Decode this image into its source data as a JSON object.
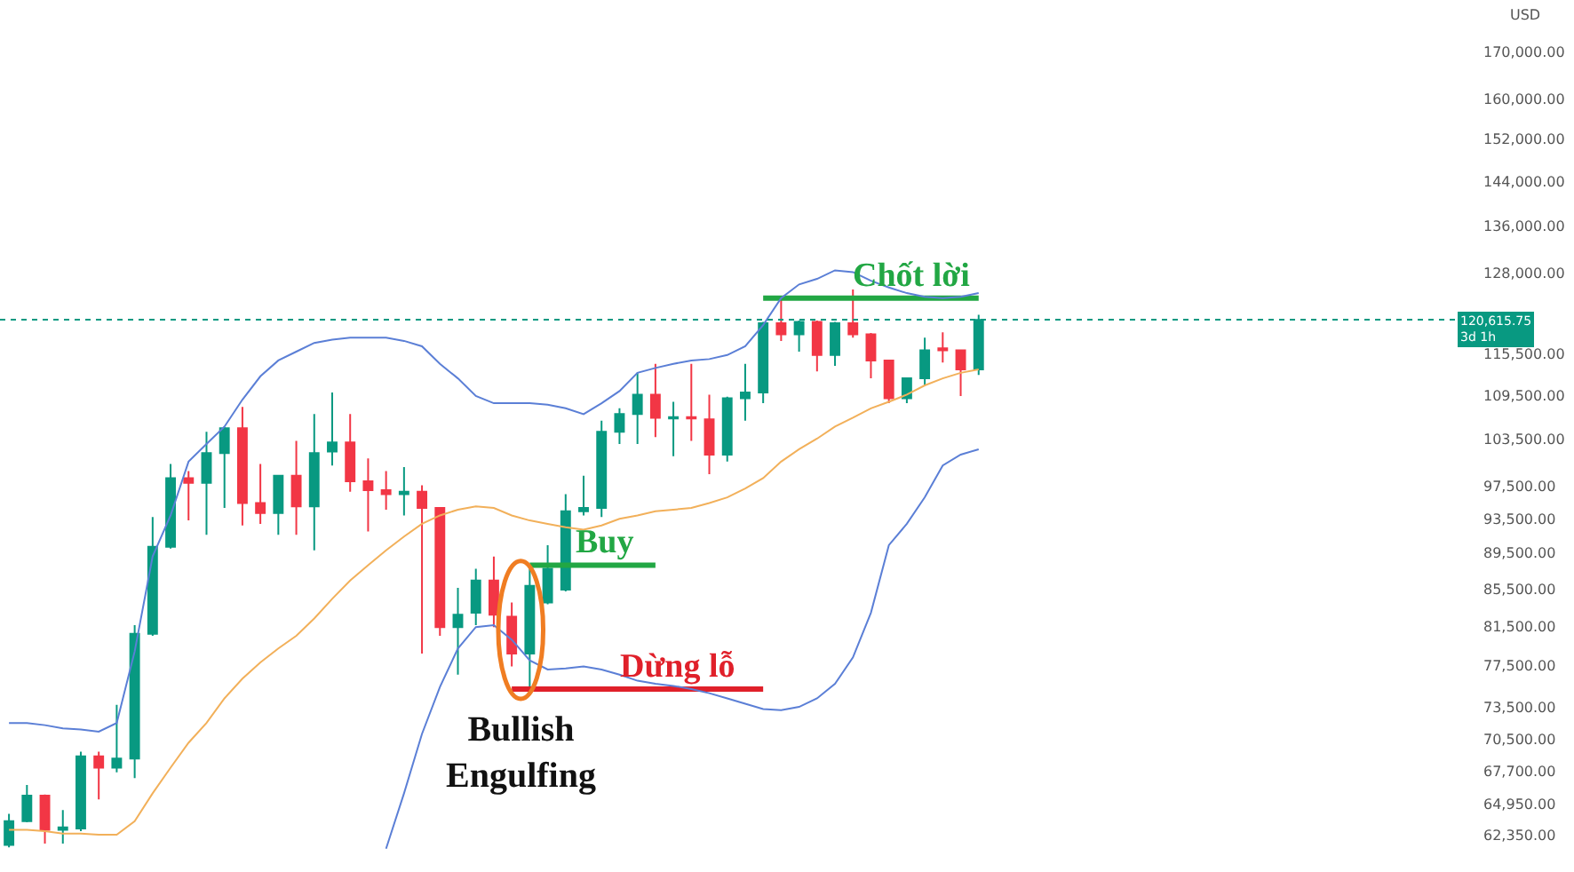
{
  "chart_data": {
    "type": "candlestick",
    "ylabel": "USD",
    "categories": [
      null,
      null,
      null,
      null,
      null,
      null,
      null,
      null,
      null,
      null,
      null,
      null,
      null,
      null,
      null,
      null,
      null,
      null,
      null,
      null,
      null,
      null,
      null,
      null,
      null,
      null,
      null,
      null,
      null,
      null,
      null,
      null,
      null,
      null,
      null,
      null,
      null,
      null,
      null,
      null,
      null,
      null,
      null,
      null,
      null,
      null,
      null,
      null,
      null,
      null,
      null,
      null,
      null,
      null,
      null
    ],
    "ohlc": [
      [
        61600,
        64100,
        61400,
        63500
      ],
      [
        63500,
        66500,
        63400,
        65600
      ],
      [
        65600,
        65700,
        61700,
        62800
      ],
      [
        62800,
        64400,
        61700,
        63000
      ],
      [
        62900,
        69400,
        62700,
        69000
      ],
      [
        69000,
        69400,
        65300,
        68000
      ],
      [
        68000,
        73700,
        67600,
        68800
      ],
      [
        68800,
        81600,
        67100,
        80700
      ],
      [
        80700,
        93700,
        80500,
        90200
      ],
      [
        90200,
        100300,
        90000,
        98500
      ],
      [
        98500,
        99400,
        93300,
        97900
      ],
      [
        97900,
        104500,
        91600,
        101700
      ],
      [
        101700,
        105200,
        94800,
        105000
      ],
      [
        105000,
        107900,
        92700,
        95400
      ],
      [
        95400,
        100300,
        92900,
        94200
      ],
      [
        94200,
        98900,
        91600,
        98800
      ],
      [
        98800,
        103300,
        91600,
        95000
      ],
      [
        95000,
        106900,
        89800,
        101700
      ],
      [
        101900,
        109900,
        100100,
        103100
      ],
      [
        103100,
        106900,
        96800,
        98100
      ],
      [
        98100,
        101000,
        92000,
        97000
      ],
      [
        97000,
        99400,
        94600,
        96500
      ],
      [
        96500,
        99900,
        93900,
        96800
      ],
      [
        96800,
        97600,
        78700,
        94800
      ],
      [
        94800,
        94900,
        80500,
        81400
      ],
      [
        81400,
        85600,
        76600,
        82700
      ],
      [
        82900,
        87700,
        81600,
        86400
      ],
      [
        86400,
        89100,
        81400,
        82700
      ],
      [
        82500,
        84000,
        77400,
        78700
      ],
      [
        78700,
        87700,
        75400,
        85800
      ],
      [
        84000,
        90400,
        83800,
        87700
      ],
      [
        85400,
        96500,
        85200,
        94400
      ],
      [
        94400,
        98800,
        93900,
        94800
      ],
      [
        94800,
        106000,
        93700,
        104500
      ],
      [
        104500,
        107700,
        102900,
        106900
      ],
      [
        106900,
        112700,
        102900,
        109600
      ],
      [
        109600,
        114000,
        103800,
        106400
      ],
      [
        106300,
        108600,
        101300,
        106500
      ],
      [
        106500,
        114000,
        103300,
        106300
      ],
      [
        106200,
        109600,
        99000,
        101500
      ],
      [
        101500,
        109300,
        100600,
        109100
      ],
      [
        109100,
        114000,
        106000,
        109900
      ],
      [
        109900,
        120300,
        108400,
        120100
      ],
      [
        120100,
        124000,
        117400,
        118400
      ],
      [
        118400,
        120500,
        115800,
        120300
      ],
      [
        120300,
        120500,
        112900,
        115300
      ],
      [
        115300,
        120300,
        113700,
        120100
      ],
      [
        120100,
        125400,
        117900,
        118400
      ],
      [
        118400,
        118600,
        111900,
        114500
      ],
      [
        114500,
        114600,
        108400,
        109100
      ],
      [
        109100,
        112000,
        108400,
        111900
      ],
      [
        111900,
        117900,
        110900,
        116000
      ],
      [
        116300,
        118700,
        114200,
        116000
      ],
      [
        116000,
        116100,
        109400,
        113200
      ],
      [
        113200,
        121400,
        112400,
        120600
      ]
    ],
    "colors": [
      "#089981",
      "#089981",
      "#f23645",
      "#089981",
      "#089981",
      "#f23645",
      "#089981",
      "#089981",
      "#089981",
      "#089981",
      "#f23645",
      "#089981",
      "#089981",
      "#f23645",
      "#f23645",
      "#089981",
      "#f23645",
      "#089981",
      "#089981",
      "#f23645",
      "#f23645",
      "#f23645",
      "#089981",
      "#f23645",
      "#f23645",
      "#089981",
      "#089981",
      "#f23645",
      "#f23645",
      "#089981",
      "#089981",
      "#089981",
      "#089981",
      "#089981",
      "#089981",
      "#089981",
      "#f23645",
      "#089981",
      "#f23645",
      "#f23645",
      "#089981",
      "#089981",
      "#089981",
      "#f23645",
      "#089981",
      "#f23645",
      "#089981",
      "#f23645",
      "#f23645",
      "#f23645",
      "#089981",
      "#089981",
      "#f23645",
      "#f23645",
      "#089981"
    ],
    "series": [
      {
        "type": "line",
        "color": "#5b7fd6",
        "values": [
          72000,
          72000,
          71800,
          71500,
          71400,
          71200,
          72000,
          78900,
          89100,
          93900,
          100600,
          102900,
          105200,
          108900,
          112200,
          114500,
          115800,
          117100,
          117600,
          117900,
          117900,
          117900,
          117400,
          116600,
          114000,
          111900,
          109400,
          108400,
          108400,
          108400,
          108200,
          107700,
          106900,
          108400,
          110100,
          112700,
          113400,
          114000,
          114500,
          114700,
          115300,
          116600,
          119800,
          124000,
          126200,
          127100,
          128500,
          128200,
          126800,
          125700,
          124800,
          124200,
          124000,
          124200,
          124800
        ]
      },
      {
        "type": "line",
        "color": "#f2b05a",
        "values": [
          62800,
          62800,
          62700,
          62500,
          62500,
          62400,
          62400,
          63500,
          65800,
          68000,
          70200,
          72000,
          74300,
          76200,
          77800,
          79200,
          80500,
          82300,
          84400,
          86400,
          88100,
          89800,
          91400,
          92900,
          93900,
          94600,
          95000,
          94800,
          93900,
          93300,
          92900,
          92500,
          92200,
          92700,
          93500,
          93900,
          94400,
          94600,
          94800,
          95400,
          96100,
          97200,
          98500,
          100600,
          102200,
          103600,
          105200,
          106400,
          107700,
          108600,
          109600,
          110900,
          111900,
          112700,
          113200
        ]
      },
      {
        "type": "line",
        "color": "#5b7fd6",
        "values": [
          null,
          null,
          null,
          null,
          null,
          null,
          null,
          null,
          null,
          null,
          null,
          null,
          null,
          null,
          null,
          null,
          null,
          null,
          null,
          null,
          null,
          61300,
          65800,
          71000,
          75400,
          79200,
          81400,
          81600,
          80100,
          78000,
          77100,
          77200,
          77400,
          77100,
          76600,
          76000,
          75700,
          75500,
          75200,
          74800,
          74300,
          73800,
          73300,
          73200,
          73500,
          74300,
          75700,
          78300,
          82900,
          90400,
          92900,
          96100,
          100100,
          101500,
          102200
        ]
      },
      {
        "type": "line",
        "name": "Chốt lời",
        "color": "#22a744",
        "values": [
          null,
          null,
          null,
          null,
          null,
          null,
          null,
          null,
          null,
          null,
          null,
          null,
          null,
          null,
          null,
          null,
          null,
          null,
          null,
          null,
          null,
          null,
          null,
          null,
          null,
          null,
          null,
          null,
          null,
          null,
          null,
          null,
          null,
          null,
          null,
          null,
          null,
          null,
          null,
          null,
          null,
          null,
          124000,
          124000,
          124000,
          124000,
          124000,
          124000,
          124000,
          124000,
          124000,
          124000,
          124000,
          124000,
          124000
        ]
      },
      {
        "type": "line",
        "name": "Buy",
        "color": "#22a744",
        "values": [
          null,
          null,
          null,
          null,
          null,
          null,
          null,
          null,
          null,
          null,
          null,
          null,
          null,
          null,
          null,
          null,
          null,
          null,
          null,
          null,
          null,
          null,
          null,
          null,
          null,
          null,
          null,
          null,
          null,
          88100,
          88100,
          88100,
          88100,
          88100,
          88100,
          88100,
          88100,
          null,
          null,
          null,
          null,
          null,
          null,
          null,
          null,
          null,
          null,
          null,
          null,
          null,
          null,
          null,
          null,
          null,
          null
        ]
      },
      {
        "type": "line",
        "name": "Dừng lỗ",
        "color": "#e0202a",
        "values": [
          null,
          null,
          null,
          null,
          null,
          null,
          null,
          null,
          null,
          null,
          null,
          null,
          null,
          null,
          null,
          null,
          null,
          null,
          null,
          null,
          null,
          null,
          null,
          null,
          null,
          null,
          null,
          null,
          75200,
          75200,
          75200,
          75200,
          75200,
          75200,
          75200,
          75200,
          75200,
          75200,
          75200,
          75200,
          75200,
          75200,
          75200,
          null,
          null,
          null,
          null,
          null,
          null,
          null,
          null,
          null,
          null,
          null,
          null
        ]
      }
    ],
    "log": true,
    "ylim": [
      59500,
      181600
    ],
    "yticks": [
      {
        "value": 170000,
        "label": "170,000.00"
      },
      {
        "value": 160000,
        "label": "160,000.00"
      },
      {
        "value": 152000,
        "label": "152,000.00"
      },
      {
        "value": 144000,
        "label": "144,000.00"
      },
      {
        "value": 136000,
        "label": "136,000.00"
      },
      {
        "value": 128000,
        "label": "128,000.00"
      },
      {
        "value": 115500,
        "label": "115,500.00"
      },
      {
        "value": 109500,
        "label": "109,500.00"
      },
      {
        "value": 103500,
        "label": "103,500.00"
      },
      {
        "value": 97500,
        "label": "97,500.00"
      },
      {
        "value": 93500,
        "label": "93,500.00"
      },
      {
        "value": 89500,
        "label": "89,500.00"
      },
      {
        "value": 85500,
        "label": "85,500.00"
      },
      {
        "value": 81500,
        "label": "81,500.00"
      },
      {
        "value": 77500,
        "label": "77,500.00"
      },
      {
        "value": 73500,
        "label": "73,500.00"
      },
      {
        "value": 70500,
        "label": "70,500.00"
      },
      {
        "value": 67700,
        "label": "67,700.00"
      },
      {
        "value": 64950,
        "label": "64,950.00"
      },
      {
        "value": 62350,
        "label": "62,350.00"
      }
    ],
    "ref_lines": [
      {
        "axis": "y",
        "value": 120615.75,
        "label": "120,615.75",
        "color": "#089981",
        "line_style": "dotted"
      }
    ],
    "annotations": [
      "3d 1h",
      "Bullish Engulfing"
    ]
  }
}
